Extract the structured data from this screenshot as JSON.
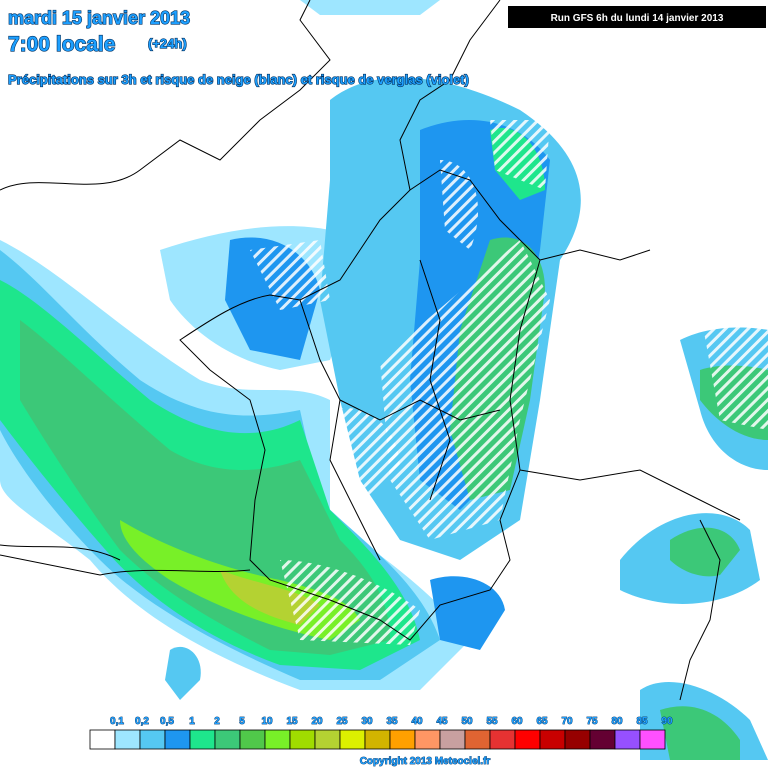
{
  "header": {
    "date": "mardi 15 janvier 2013",
    "time": "7:00 locale",
    "lead": "(+24h)",
    "subtitle": "Précipitations sur 3h et risque de neige (blanc) et risque de verglas (violet)",
    "run": "Run GFS 6h du lundi 14 janvier 2013"
  },
  "legend": {
    "labels": [
      "0,1",
      "0,2",
      "0,5",
      "1",
      "2",
      "5",
      "10",
      "15",
      "20",
      "25",
      "30",
      "35",
      "40",
      "45",
      "50",
      "55",
      "60",
      "65",
      "70",
      "75",
      "80",
      "85",
      "90"
    ],
    "colors": [
      "#ffffff",
      "#9ee6ff",
      "#55c8f2",
      "#1e96f0",
      "#1ee68c",
      "#3cc878",
      "#50c84a",
      "#78f028",
      "#a0dc00",
      "#b4d232",
      "#dcf000",
      "#d2b400",
      "#ffa000",
      "#ff9664",
      "#c8a0a0",
      "#e06432",
      "#e63232",
      "#ff0000",
      "#c80000",
      "#960000",
      "#640032",
      "#9650ff",
      "#ff50ff"
    ]
  },
  "footer": {
    "copyright": "Copyright 2013 Meteociel.fr"
  }
}
